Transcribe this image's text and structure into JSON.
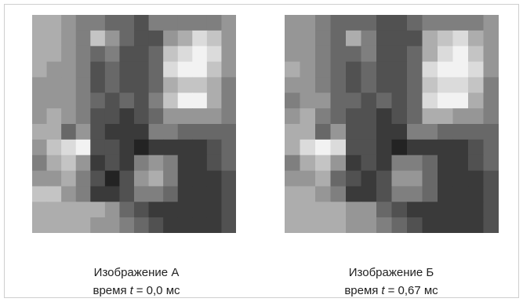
{
  "figures": [
    {
      "title": "Изображение А",
      "time_label": "время",
      "variable": "t",
      "time_value": "= 0,0 мс"
    },
    {
      "title": "Изображение Б",
      "time_label": "время",
      "variable": "t",
      "time_value": "= 0,67 мс"
    }
  ]
}
